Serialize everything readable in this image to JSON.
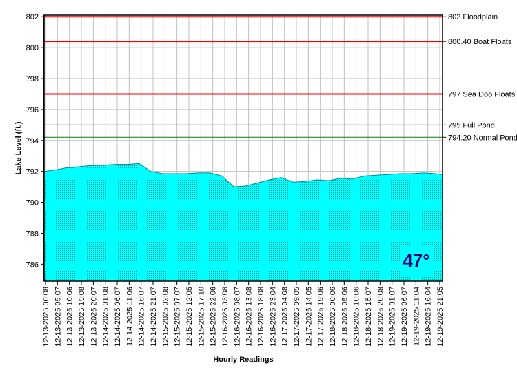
{
  "chart_data": {
    "type": "area",
    "title": "",
    "xlabel": "Hourly Readings",
    "ylabel": "Lake Level (ft.)",
    "ylim": [
      784.9,
      802.1
    ],
    "yticks": [
      786,
      788,
      790,
      792,
      794,
      796,
      798,
      800,
      802
    ],
    "xtick_labels": [
      "12-13-2025 00:08",
      "12-13-2025 05:07",
      "12-13-2025 10:06",
      "12-13-2025 15:08",
      "12-13-2025 20:07",
      "12-14-2025 01:08",
      "12-14-2025 06:07",
      "12-14-2025 11:06",
      "12-14-2025 16:07",
      "12-14-2025 21:07",
      "12-15-2025 02:08",
      "12-15-2025 07:07",
      "12-15-2025 12:05",
      "12-15-2025 17:10",
      "12-15-2025 22:06",
      "12-16-2025 03:08",
      "12-16-2025 08:07",
      "12-16-2025 13:08",
      "12-16-2025 18:08",
      "12-16-2025 23:04",
      "12-17-2025 04:08",
      "12-17-2025 09:05",
      "12-17-2025 14:05",
      "12-17-2025 19:06",
      "12-18-2025 00:06",
      "12-18-2025 05:06",
      "12-18-2025 10:06",
      "12-18-2025 15:07",
      "12-18-2025 20:08",
      "12-19-2025 01:07",
      "12-19-2025 06:07",
      "12-19-2025 11:04",
      "12-19-2025 16:04",
      "12-19-2025 21:05"
    ],
    "series": [
      {
        "color": "#00ffff",
        "x": [
          0,
          5,
          10,
          15,
          20,
          25,
          30,
          35,
          40,
          45,
          50,
          55,
          60,
          65,
          70,
          75,
          80,
          85,
          90,
          95,
          100,
          105,
          110,
          115,
          120,
          125,
          130,
          135,
          140,
          145,
          150,
          155,
          160,
          165,
          168
        ],
        "values": [
          792.0,
          792.1,
          792.25,
          792.3,
          792.38,
          792.4,
          792.45,
          792.45,
          792.5,
          792.0,
          791.85,
          791.85,
          791.85,
          791.9,
          791.9,
          791.7,
          791.0,
          791.05,
          791.25,
          791.45,
          791.6,
          791.3,
          791.35,
          791.45,
          791.4,
          791.55,
          791.5,
          791.7,
          791.75,
          791.8,
          791.85,
          791.85,
          791.9,
          791.85,
          791.8
        ]
      }
    ],
    "reference_lines": [
      {
        "value": 802.0,
        "label": "802 Floodplain",
        "color": "#ff0000"
      },
      {
        "value": 800.4,
        "label": "800.40 Boat Floats",
        "color": "#ff0000"
      },
      {
        "value": 797.0,
        "label": "797 Sea Doo Floats",
        "color": "#ff0000"
      },
      {
        "value": 795.0,
        "label": "795 Full Pond",
        "color": "#000080"
      },
      {
        "value": 794.2,
        "label": "794.20 Normal Pond",
        "color": "#008000"
      }
    ],
    "grid": true,
    "plot_background": "#ffffff",
    "grid_color": "#c0c0c0",
    "temperature_badge": {
      "text": "47°",
      "background": "#00ffff",
      "color": "#000080"
    }
  }
}
